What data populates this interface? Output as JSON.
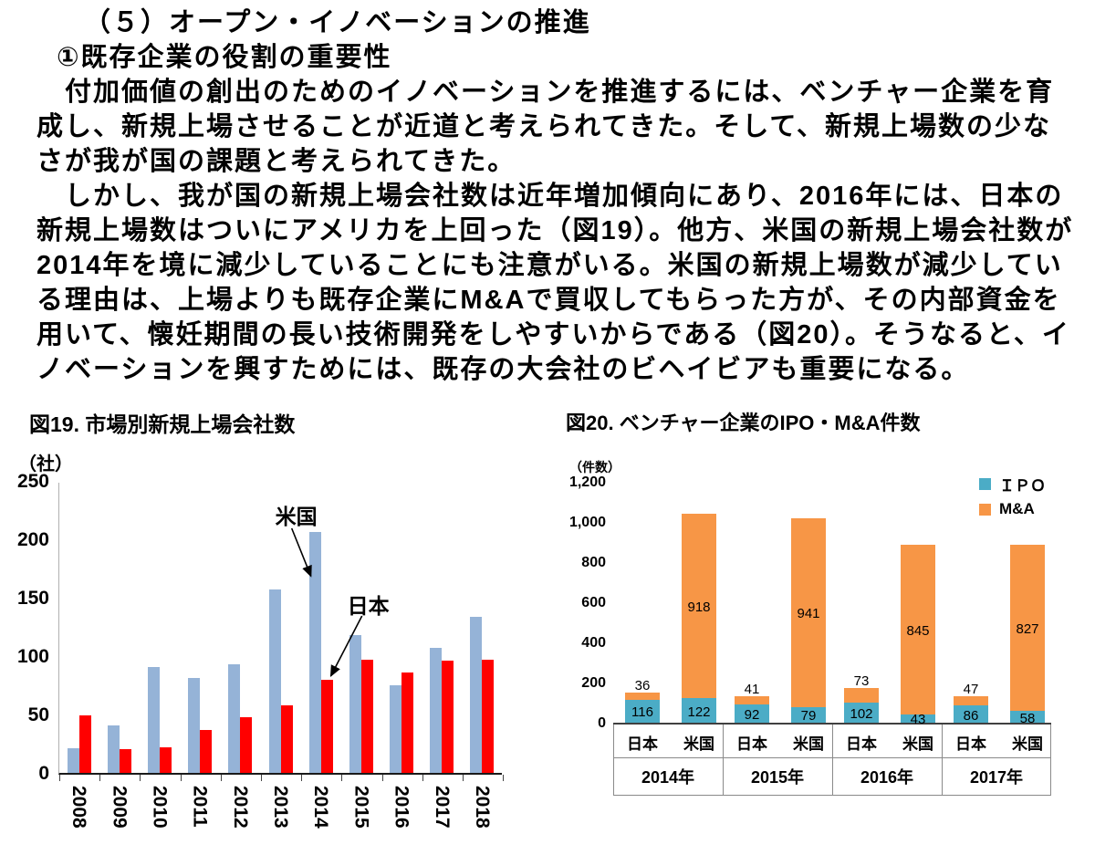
{
  "page": {
    "heading1": "（５）オープン・イノベーションの推進",
    "heading2": "①既存企業の役割の重要性",
    "paragraph1": "　付加価値の創出のためのイノベーションを推進するには、ベンチャー企業を育成し、新規上場させることが近道と考えられてきた。そして、新規上場数の少なさが我が国の課題と考えられてきた。",
    "paragraph2": "　しかし、我が国の新規上場会社数は近年増加傾向にあり、2016年には、日本の新規上場数はついにアメリカを上回った（図19）。他方、米国の新規上場会社数が2014年を境に減少していることにも注意がいる。米国の新規上場数が減少している理由は、上場よりも既存企業にM&Aで買収してもらった方が、その内部資金を用いて、懐妊期間の長い技術開発をしやすいからである（図20）。そうなると、イノベーションを興すためには、既存の大会社のビヘイビアも重要になる。"
  },
  "chart_data": [
    {
      "type": "bar",
      "title": "図19. 市場別新規上場会社数",
      "unit_label": "（社）",
      "categories": [
        "2008",
        "2009",
        "2010",
        "2011",
        "2012",
        "2013",
        "2014",
        "2015",
        "2016",
        "2017",
        "2018"
      ],
      "series": [
        {
          "name": "米国",
          "color": "#95B3D7",
          "values": [
            21,
            41,
            91,
            81,
            93,
            157,
            206,
            118,
            75,
            107,
            134
          ]
        },
        {
          "name": "日本",
          "color": "#FF0000",
          "values": [
            49,
            20,
            22,
            37,
            48,
            58,
            80,
            97,
            86,
            96,
            97
          ]
        }
      ],
      "ylim": [
        0,
        250
      ],
      "ytick_step": 50,
      "grid": false,
      "legend_position": "none",
      "annotations": [
        {
          "label": "米国",
          "category": "2014",
          "series": "米国"
        },
        {
          "label": "日本",
          "category": "2014",
          "series": "日本"
        }
      ]
    },
    {
      "type": "stacked-bar",
      "title": "図20. ベンチャー企業のIPO・M&A件数",
      "unit_label": "（件数）",
      "groups": [
        "2014年",
        "2015年",
        "2016年",
        "2017年"
      ],
      "bar_labels": [
        "日本",
        "米国"
      ],
      "series": [
        {
          "name": "ＩＰＯ",
          "color": "#4BACC6",
          "values": [
            [
              116,
              122
            ],
            [
              92,
              79
            ],
            [
              102,
              43
            ],
            [
              86,
              58
            ]
          ]
        },
        {
          "name": "M&A",
          "color": "#F79646",
          "values": [
            [
              36,
              918
            ],
            [
              41,
              941
            ],
            [
              73,
              845
            ],
            [
              47,
              827
            ]
          ]
        }
      ],
      "ylim": [
        0,
        1200
      ],
      "yticks": [
        {
          "label": "1,200",
          "value": 1200
        },
        {
          "label": "1,000",
          "value": 1000
        },
        {
          "label": "800",
          "value": 800
        },
        {
          "label": "600",
          "value": 600
        },
        {
          "label": "400",
          "value": 400
        },
        {
          "label": "200",
          "value": 200
        },
        {
          "label": "0",
          "value": 0
        }
      ],
      "grid": false,
      "legend_position": "top-right"
    }
  ]
}
